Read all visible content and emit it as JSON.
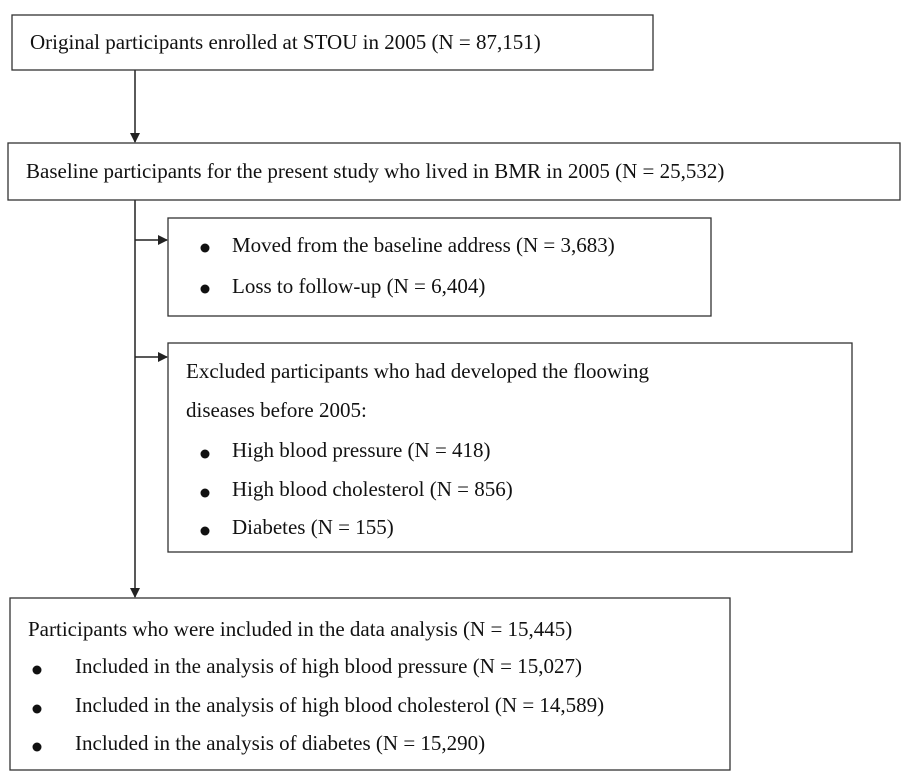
{
  "boxes": [
    {
      "text": "Original participants enrolled at STOU in 2005 (N = 87,151)"
    },
    {
      "text": "Baseline participants for the present study who lived in BMR in 2005 (N = 25,532)"
    },
    {
      "items": [
        "Moved from the baseline address (N = 3,683)",
        "Loss to follow-up (N = 6,404)"
      ]
    },
    {
      "lines": [
        "Excluded participants who had developed the floowing",
        "diseases before 2005:"
      ],
      "items": [
        "High blood pressure (N = 418)",
        "High blood cholesterol (N = 856)",
        "Diabetes (N = 155)"
      ]
    },
    {
      "text": "Participants who were included in the data analysis (N = 15,445)",
      "items": [
        "Included in the analysis of high blood pressure (N = 15,027)",
        "Included in the analysis of high blood cholesterol (N = 14,589)",
        "Included in the analysis of diabetes (N = 15,290)"
      ]
    }
  ]
}
